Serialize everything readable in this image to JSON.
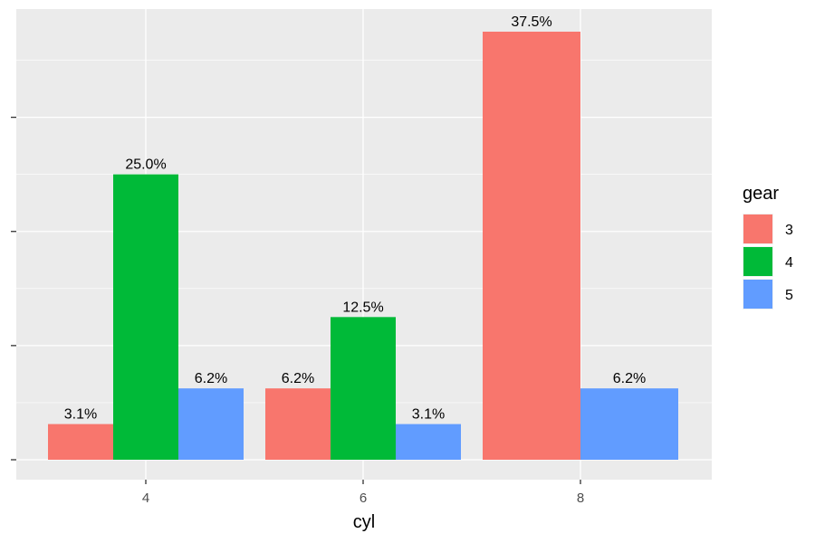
{
  "chart_data": {
    "type": "bar",
    "xlabel": "cyl",
    "ylabel": "",
    "categories": [
      "4",
      "6",
      "8"
    ],
    "ylim": [
      0,
      0.39
    ],
    "y_tick_values": [
      0,
      0.1,
      0.2,
      0.3
    ],
    "y_tick_labels_shown": false,
    "grid": true,
    "series": [
      {
        "name": "3",
        "color": "#F8766D",
        "values": [
          0.03125,
          0.0625,
          0.375
        ],
        "labels": [
          "3.1%",
          "6.2%",
          "37.5%"
        ]
      },
      {
        "name": "4",
        "color": "#00BA38",
        "values": [
          0.25,
          0.125,
          null
        ],
        "labels": [
          "25.0%",
          "12.5%",
          null
        ]
      },
      {
        "name": "5",
        "color": "#619CFF",
        "values": [
          0.0625,
          0.03125,
          0.0625
        ],
        "labels": [
          "6.2%",
          "3.1%",
          "6.2%"
        ]
      }
    ],
    "legend": {
      "title": "gear",
      "position": "right"
    },
    "panel_background": "#EBEBEB",
    "grid_color": "#FFFFFF"
  }
}
